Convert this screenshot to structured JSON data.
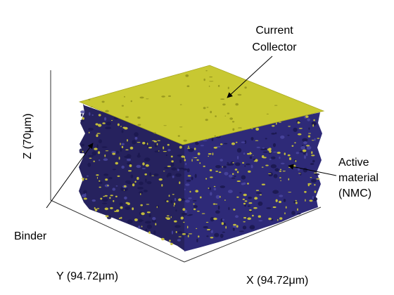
{
  "figure": {
    "labels": {
      "current_collector_line1": "Current",
      "current_collector_line2": "Collector",
      "active_line1": "Active",
      "active_line2": "material",
      "active_line3": "(NMC)",
      "binder": "Binder",
      "z_axis": "Z (70μm)",
      "y_axis": "Y (94.72μm)",
      "x_axis": "X (94.72μm)"
    },
    "colors": {
      "collector": "#c8c832",
      "active_material": "#2e2a78",
      "active_material_dark": "#1c1850",
      "binder": "#c9c33a",
      "axes": "#333333"
    }
  }
}
